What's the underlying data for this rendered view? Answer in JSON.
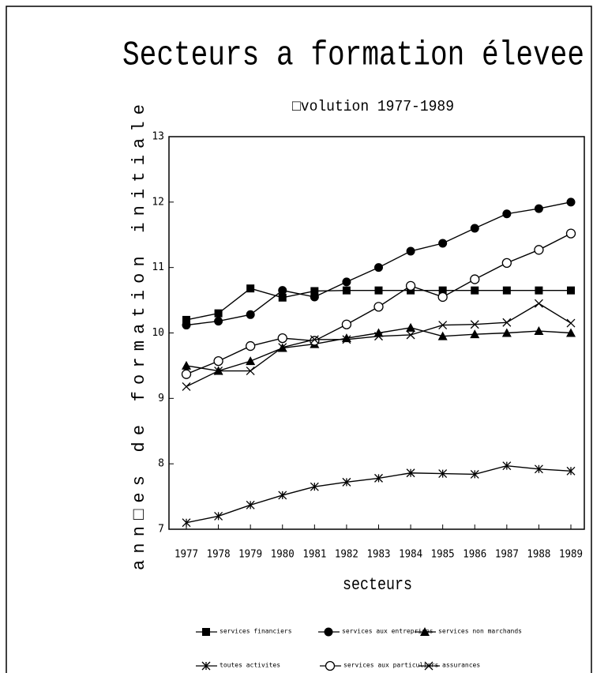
{
  "chart_data": {
    "type": "line",
    "title": "Secteurs a formation élevee",
    "subtitle": "□volution 1977-1989",
    "ylabel": "ann□es de formation initiale",
    "xlabel": "secteurs",
    "categories": [
      "1977",
      "1978",
      "1979",
      "1980",
      "1981",
      "1982",
      "1983",
      "1984",
      "1985",
      "1986",
      "1987",
      "1988",
      "1989"
    ],
    "ylim": [
      7,
      13
    ],
    "yticks": [
      7,
      8,
      9,
      10,
      11,
      12,
      13
    ],
    "series": [
      {
        "name": "services financiers",
        "color": "#000000",
        "marker": "square",
        "values": [
          10.2,
          10.3,
          10.68,
          10.54,
          10.64,
          10.65,
          10.65,
          10.65,
          10.65,
          10.65,
          10.65,
          10.65,
          10.65
        ]
      },
      {
        "name": "services aux entreprises",
        "color": "#000000",
        "marker": "circle",
        "values": [
          10.12,
          10.18,
          10.28,
          10.65,
          10.55,
          10.78,
          11.0,
          11.25,
          11.37,
          11.6,
          11.82,
          11.9,
          12.0
        ]
      },
      {
        "name": "services non marchands",
        "color": "#000000",
        "marker": "triangle",
        "values": [
          9.5,
          9.42,
          9.57,
          9.77,
          9.83,
          9.92,
          10.0,
          10.08,
          9.95,
          9.98,
          10.0,
          10.03,
          10.0
        ]
      },
      {
        "name": "toutes activites",
        "color": "#000000",
        "marker": "asterisk",
        "values": [
          7.1,
          7.2,
          7.37,
          7.52,
          7.65,
          7.72,
          7.78,
          7.86,
          7.85,
          7.84,
          7.97,
          7.92,
          7.89
        ]
      },
      {
        "name": "services aux particuliers",
        "color": "#000000",
        "marker": "open-circle",
        "values": [
          9.37,
          9.57,
          9.8,
          9.92,
          9.88,
          10.13,
          10.4,
          10.72,
          10.55,
          10.82,
          11.07,
          11.27,
          11.52
        ]
      },
      {
        "name": "assurances",
        "color": "#000000",
        "marker": "x",
        "values": [
          9.18,
          9.42,
          9.42,
          9.78,
          9.9,
          9.9,
          9.95,
          9.97,
          10.12,
          10.13,
          10.16,
          10.45,
          10.15
        ]
      }
    ]
  }
}
